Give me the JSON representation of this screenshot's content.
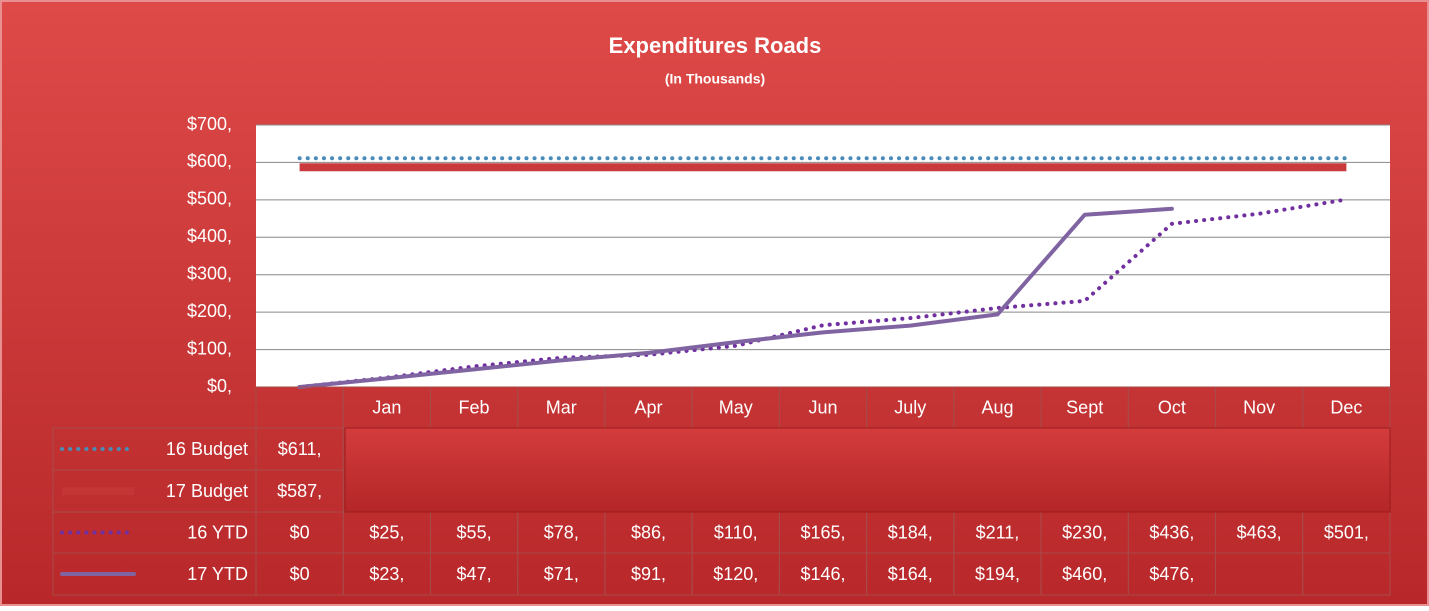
{
  "chart_data": {
    "type": "line",
    "title": "Expenditures Roads",
    "subtitle": "(In Thousands)",
    "categories": [
      null,
      "Jan",
      "Feb",
      "Mar",
      "Apr",
      "May",
      "Jun",
      "July",
      "Aug",
      "Sept",
      "Oct",
      "Nov",
      "Dec"
    ],
    "series": [
      {
        "name": "16 Budget",
        "color": "#4a8cb8",
        "style": "dotted",
        "values": [
          611,
          611,
          611,
          611,
          611,
          611,
          611,
          611,
          611,
          611,
          611,
          611,
          611
        ],
        "value_labels": [
          "$611,",
          null,
          null,
          null,
          null,
          null,
          null,
          null,
          null,
          null,
          null,
          null,
          null
        ]
      },
      {
        "name": "17 Budget",
        "color": "#c83a3c",
        "style": "thick",
        "values": [
          587,
          587,
          587,
          587,
          587,
          587,
          587,
          587,
          587,
          587,
          587,
          587,
          587
        ],
        "value_labels": [
          "$587,",
          null,
          null,
          null,
          null,
          null,
          null,
          null,
          null,
          null,
          null,
          null,
          null
        ]
      },
      {
        "name": "16 YTD",
        "color": "#7030a0",
        "style": "dotted",
        "values": [
          0,
          25,
          55,
          78,
          86,
          110,
          165,
          184,
          211,
          230,
          436,
          463,
          501
        ],
        "value_labels": [
          "$0",
          "$25,",
          "$55,",
          "$78,",
          "$86,",
          "$110,",
          "$165,",
          "$184,",
          "$211,",
          "$230,",
          "$436,",
          "$463,",
          "$501,"
        ]
      },
      {
        "name": "17 YTD",
        "color": "#8064a2",
        "style": "solid",
        "values": [
          0,
          23,
          47,
          71,
          91,
          120,
          146,
          164,
          194,
          460,
          476,
          null,
          null
        ],
        "value_labels": [
          "$0",
          "$23,",
          "$47,",
          "$71,",
          "$91,",
          "$120,",
          "$146,",
          "$164,",
          "$194,",
          "$460,",
          "$476,",
          null,
          null
        ]
      }
    ],
    "ylim": [
      0,
      700
    ],
    "yticks": [
      {
        "value": 0,
        "label": "$0,"
      },
      {
        "value": 100,
        "label": "$100,"
      },
      {
        "value": 200,
        "label": "$200,"
      },
      {
        "value": 300,
        "label": "$300,"
      },
      {
        "value": 400,
        "label": "$400,"
      },
      {
        "value": 500,
        "label": "$500,"
      },
      {
        "value": 600,
        "label": "$600,"
      },
      {
        "value": 700,
        "label": "$700,"
      }
    ],
    "grid": true
  }
}
